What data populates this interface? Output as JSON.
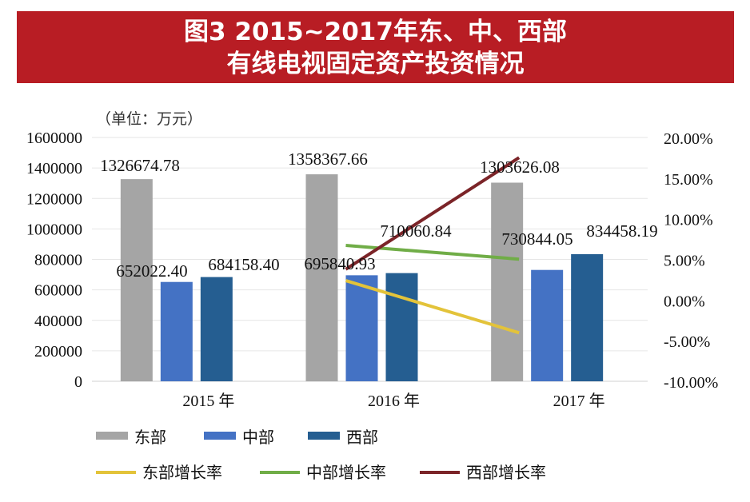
{
  "title": {
    "line1": "图3  2015~2017年东、中、西部",
    "line2": "有线电视固定资产投资情况"
  },
  "chart_data": {
    "type": "bar",
    "unit_label": "（单位：万元）",
    "categories": [
      "2015 年",
      "2016 年",
      "2017 年"
    ],
    "ylim": [
      0,
      1600000
    ],
    "yticks": [
      "0",
      "200000",
      "400000",
      "600000",
      "800000",
      "1000000",
      "1200000",
      "1400000",
      "1600000"
    ],
    "y2lim": [
      -10,
      20
    ],
    "y2ticks": [
      "-10.00%",
      "-5.00%",
      "0.00%",
      "5.00%",
      "10.00%",
      "15.00%",
      "20.00%"
    ],
    "grid": true,
    "legend_placement": "bottom",
    "series": [
      {
        "name": "东部",
        "color": "#a5a5a5",
        "values": [
          1326674.78,
          1358367.66,
          1303626.08
        ],
        "labels": [
          "1326674.78",
          "1358367.66",
          "1303626.08"
        ]
      },
      {
        "name": "中部",
        "color": "#4472c4",
        "values": [
          652022.4,
          695840.93,
          730844.05
        ],
        "labels": [
          "652022.40",
          "695840.93",
          "730844.05"
        ]
      },
      {
        "name": "西部",
        "color": "#255e91",
        "values": [
          684158.4,
          710060.84,
          834458.19
        ],
        "labels": [
          "684158.40",
          "710060.84",
          "834458.19"
        ]
      }
    ],
    "line_series": [
      {
        "name": "东部增长率",
        "color": "#e3c33a",
        "axis": "right",
        "values": [
          null,
          2.39,
          -4.03
        ]
      },
      {
        "name": "中部增长率",
        "color": "#70ad47",
        "axis": "right",
        "values": [
          null,
          6.72,
          5.03
        ]
      },
      {
        "name": "西部增长率",
        "color": "#7b2428",
        "axis": "right",
        "values": [
          null,
          3.79,
          17.52
        ]
      }
    ]
  }
}
